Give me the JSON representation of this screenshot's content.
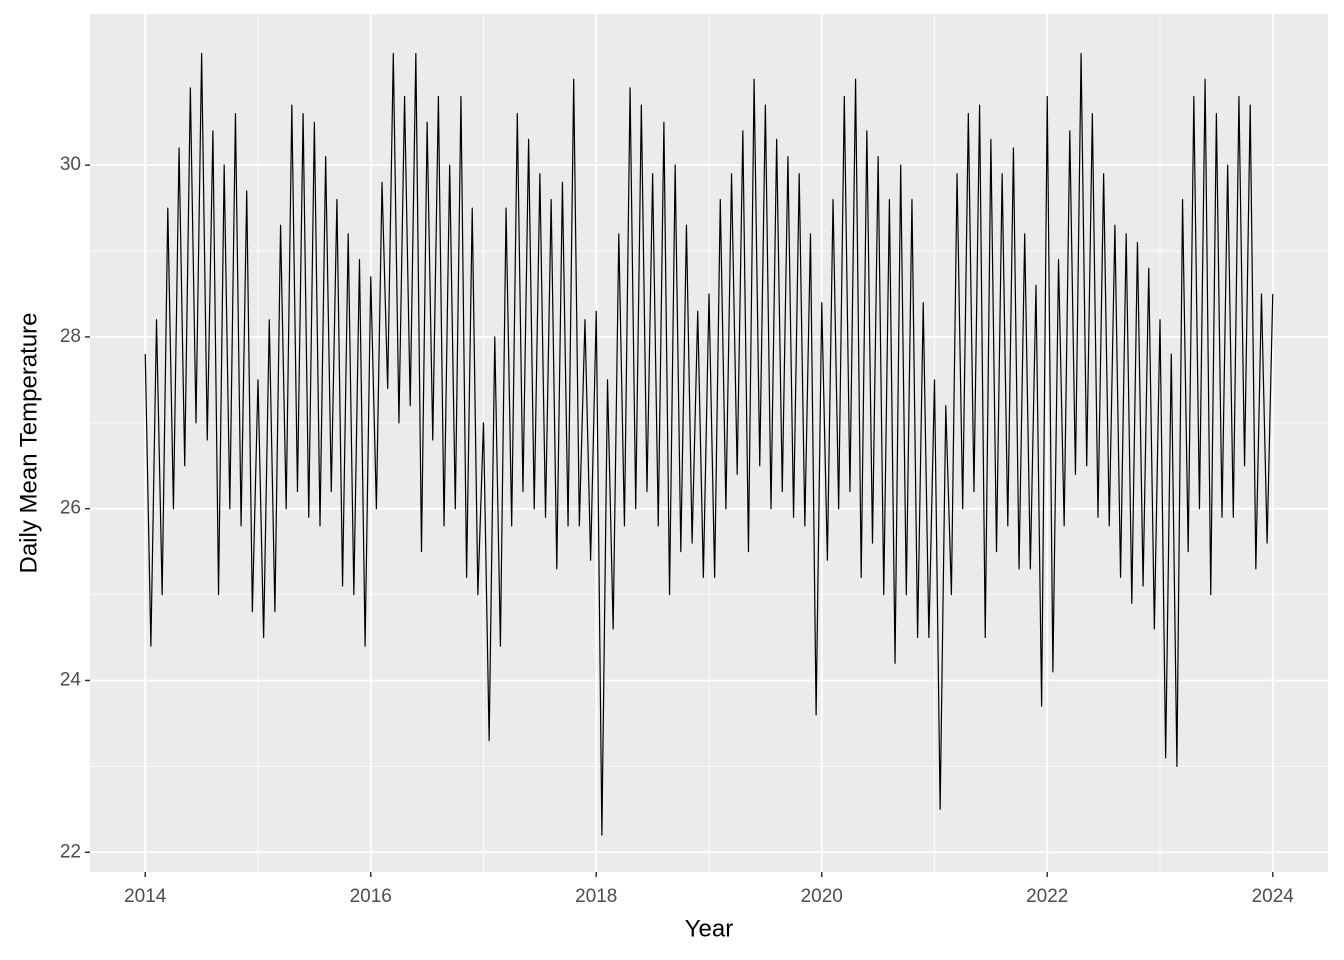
{
  "chart_data": {
    "type": "line",
    "x_label": "Year",
    "y_label": "Daily Mean Temperature",
    "color": "#000000",
    "grid": true,
    "xlim": [
      2013.51,
      2024.49
    ],
    "ylim": [
      21.77,
      31.76
    ],
    "xticks": [
      2014,
      2016,
      2018,
      2020,
      2022,
      2024
    ],
    "yticks": [
      22,
      24,
      26,
      28,
      30
    ],
    "x": [
      2014.0,
      2014.05,
      2014.1,
      2014.15,
      2014.2,
      2014.25,
      2014.3,
      2014.35,
      2014.4,
      2014.45,
      2014.5,
      2014.55,
      2014.6,
      2014.65,
      2014.7,
      2014.75,
      2014.8,
      2014.85,
      2014.9,
      2014.95,
      2015.0,
      2015.05,
      2015.1,
      2015.15,
      2015.2,
      2015.25,
      2015.3,
      2015.35,
      2015.4,
      2015.45,
      2015.5,
      2015.55,
      2015.6,
      2015.65,
      2015.7,
      2015.75,
      2015.8,
      2015.85,
      2015.9,
      2015.95,
      2016.0,
      2016.05,
      2016.1,
      2016.15,
      2016.2,
      2016.25,
      2016.3,
      2016.35,
      2016.4,
      2016.45,
      2016.5,
      2016.55,
      2016.6,
      2016.65,
      2016.7,
      2016.75,
      2016.8,
      2016.85,
      2016.9,
      2016.95,
      2017.0,
      2017.05,
      2017.1,
      2017.15,
      2017.2,
      2017.25,
      2017.3,
      2017.35,
      2017.4,
      2017.45,
      2017.5,
      2017.55,
      2017.6,
      2017.65,
      2017.7,
      2017.75,
      2017.8,
      2017.85,
      2017.9,
      2017.95,
      2018.0,
      2018.05,
      2018.1,
      2018.15,
      2018.2,
      2018.25,
      2018.3,
      2018.35,
      2018.4,
      2018.45,
      2018.5,
      2018.55,
      2018.6,
      2018.65,
      2018.7,
      2018.75,
      2018.8,
      2018.85,
      2018.9,
      2018.95,
      2019.0,
      2019.05,
      2019.1,
      2019.15,
      2019.2,
      2019.25,
      2019.3,
      2019.35,
      2019.4,
      2019.45,
      2019.5,
      2019.55,
      2019.6,
      2019.65,
      2019.7,
      2019.75,
      2019.8,
      2019.85,
      2019.9,
      2019.95,
      2020.0,
      2020.05,
      2020.1,
      2020.15,
      2020.2,
      2020.25,
      2020.3,
      2020.35,
      2020.4,
      2020.45,
      2020.5,
      2020.55,
      2020.6,
      2020.65,
      2020.7,
      2020.75,
      2020.8,
      2020.85,
      2020.9,
      2020.95,
      2021.0,
      2021.05,
      2021.1,
      2021.15,
      2021.2,
      2021.25,
      2021.3,
      2021.35,
      2021.4,
      2021.45,
      2021.5,
      2021.55,
      2021.6,
      2021.65,
      2021.7,
      2021.75,
      2021.8,
      2021.85,
      2021.9,
      2021.95,
      2022.0,
      2022.05,
      2022.1,
      2022.15,
      2022.2,
      2022.25,
      2022.3,
      2022.35,
      2022.4,
      2022.45,
      2022.5,
      2022.55,
      2022.6,
      2022.65,
      2022.7,
      2022.75,
      2022.8,
      2022.85,
      2022.9,
      2022.95,
      2023.0,
      2023.05,
      2023.1,
      2023.15,
      2023.2,
      2023.25,
      2023.3,
      2023.35,
      2023.4,
      2023.45,
      2023.5,
      2023.55,
      2023.6,
      2023.65,
      2023.7,
      2023.75,
      2023.8,
      2023.85,
      2023.9,
      2023.95,
      2024.0
    ],
    "values": [
      27.8,
      24.4,
      28.2,
      25.0,
      29.5,
      26.0,
      30.2,
      26.5,
      30.9,
      27.0,
      31.3,
      26.8,
      30.4,
      25.0,
      30.0,
      26.0,
      30.6,
      25.8,
      29.7,
      24.8,
      27.5,
      24.5,
      28.2,
      24.8,
      29.3,
      26.0,
      30.7,
      26.2,
      30.6,
      25.9,
      30.5,
      25.8,
      30.1,
      26.2,
      29.6,
      25.1,
      29.2,
      25.0,
      28.9,
      24.4,
      28.7,
      26.0,
      29.8,
      27.4,
      31.3,
      27.0,
      30.8,
      27.2,
      31.3,
      25.5,
      30.5,
      26.8,
      30.8,
      25.8,
      30.0,
      26.0,
      30.8,
      25.2,
      29.5,
      25.0,
      27.0,
      23.3,
      28.0,
      24.4,
      29.5,
      25.8,
      30.6,
      26.2,
      30.3,
      26.0,
      29.9,
      25.9,
      29.6,
      25.3,
      29.8,
      25.8,
      31.0,
      25.8,
      28.2,
      25.4,
      28.3,
      22.2,
      27.5,
      24.6,
      29.2,
      25.8,
      30.9,
      26.0,
      30.7,
      26.2,
      29.9,
      25.8,
      30.5,
      25.0,
      30.0,
      25.5,
      29.3,
      25.6,
      28.3,
      25.2,
      28.5,
      25.2,
      29.6,
      26.0,
      29.9,
      26.4,
      30.4,
      25.5,
      31.0,
      26.5,
      30.7,
      26.0,
      30.3,
      26.2,
      30.1,
      25.9,
      29.9,
      25.8,
      29.2,
      23.6,
      28.4,
      25.4,
      29.6,
      26.0,
      30.8,
      26.2,
      31.0,
      25.2,
      30.4,
      25.6,
      30.1,
      25.0,
      29.6,
      24.2,
      30.0,
      25.0,
      29.6,
      24.5,
      28.4,
      24.5,
      27.5,
      22.5,
      27.2,
      25.0,
      29.9,
      26.0,
      30.6,
      26.2,
      30.7,
      24.5,
      30.3,
      25.5,
      29.9,
      25.8,
      30.2,
      25.3,
      29.2,
      25.3,
      28.6,
      23.7,
      30.8,
      24.1,
      28.9,
      25.8,
      30.4,
      26.4,
      31.3,
      26.5,
      30.6,
      25.9,
      29.9,
      25.8,
      29.3,
      25.2,
      29.2,
      24.9,
      29.1,
      25.1,
      28.8,
      24.6,
      28.2,
      23.1,
      27.8,
      23.0,
      29.6,
      25.5,
      30.8,
      26.0,
      31.0,
      25.0,
      30.6,
      25.9,
      30.0,
      25.9,
      30.8,
      26.5,
      30.7,
      25.3,
      28.5,
      25.6,
      28.5
    ]
  }
}
